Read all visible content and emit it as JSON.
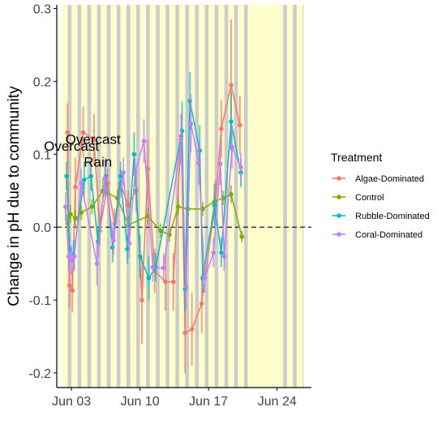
{
  "chart_data": {
    "type": "line",
    "title": "",
    "xlabel": "",
    "ylabel": "Change in pH due to community",
    "x_axis": {
      "ticks": [
        {
          "label": "Jun 03",
          "day": 3
        },
        {
          "label": "Jun 10",
          "day": 10
        },
        {
          "label": "Jun 17",
          "day": 17
        },
        {
          "label": "Jun 24",
          "day": 24
        }
      ],
      "range_days": [
        1.5,
        27.5
      ]
    },
    "y_axis": {
      "ylim": [
        -0.22,
        0.305
      ],
      "ticks": [
        {
          "label": "0.3",
          "value": 0.3
        },
        {
          "label": "0.2",
          "value": 0.2
        },
        {
          "label": "0.1",
          "value": 0.1
        },
        {
          "label": "0.0",
          "value": 0.0
        },
        {
          "label": "-0.1",
          "value": -0.1
        },
        {
          "label": "-0.2",
          "value": -0.2
        }
      ]
    },
    "reference_line": {
      "y": 0,
      "style": "dashed"
    },
    "background": {
      "day_band_color": "#ffffcc",
      "night_band_color": "#cccccc",
      "band_start_day": 2.0,
      "band_end_day": 20.9,
      "tail_band_end_day": 26.7
    },
    "grid": false,
    "legend": {
      "title": "Treatment",
      "position": "right",
      "entries": [
        {
          "label": "Algae-Dominated",
          "color": "#f8766d"
        },
        {
          "label": "Control",
          "color": "#7cae00"
        },
        {
          "label": "Rubble-Dominated",
          "color": "#00bfc4"
        },
        {
          "label": "Coral-Dominated",
          "color": "#c77cff"
        }
      ]
    },
    "annotations": [
      {
        "text": "Overcast",
        "day": 3.0,
        "value": 0.105
      },
      {
        "text": "Overcast",
        "day": 5.2,
        "value": 0.114
      },
      {
        "text": "Rain",
        "day": 5.7,
        "value": 0.083
      }
    ],
    "series": [
      {
        "name": "Algae-Dominated",
        "color": "#f8766d",
        "points": [
          {
            "day": 2.6,
            "y": 0.13,
            "err": 0.04
          },
          {
            "day": 2.8,
            "y": -0.08,
            "err": 0.03
          },
          {
            "day": 3.1,
            "y": -0.087,
            "err": 0.03
          },
          {
            "day": 3.4,
            "y": 0.055,
            "err": 0.04
          },
          {
            "day": 4.2,
            "y": 0.13,
            "err": 0.035
          },
          {
            "day": 5.3,
            "y": 0.12,
            "err": 0.035
          },
          {
            "day": 5.9,
            "y": -0.005,
            "err": 0.02
          },
          {
            "day": 6.7,
            "y": 0.06,
            "err": 0.02
          },
          {
            "day": 7.4,
            "y": 0.005,
            "err": 0.02
          },
          {
            "day": 8.0,
            "y": 0.06,
            "err": 0.02
          },
          {
            "day": 8.8,
            "y": 0.03,
            "err": 0.02
          },
          {
            "day": 9.6,
            "y": 0.05,
            "err": 0.03
          },
          {
            "day": 10.2,
            "y": -0.1,
            "err": 0.06
          },
          {
            "day": 10.8,
            "y": 0.08,
            "err": 0.04
          },
          {
            "day": 11.5,
            "y": -0.06,
            "err": 0.03
          },
          {
            "day": 12.6,
            "y": -0.075,
            "err": 0.04
          },
          {
            "day": 13.4,
            "y": -0.075,
            "err": 0.04
          },
          {
            "day": 14.2,
            "y": 0.125,
            "err": 0.03
          },
          {
            "day": 14.6,
            "y": -0.145,
            "err": 0.055
          },
          {
            "day": 15.3,
            "y": -0.14,
            "err": 0.05
          },
          {
            "day": 16.3,
            "y": -0.105,
            "err": 0.04
          },
          {
            "day": 17.7,
            "y": 0.035,
            "err": 0.03
          },
          {
            "day": 18.3,
            "y": 0.135,
            "err": 0.04
          },
          {
            "day": 19.3,
            "y": 0.195,
            "err": 0.09
          },
          {
            "day": 20.2,
            "y": 0.14,
            "err": 0.04
          }
        ]
      },
      {
        "name": "Control",
        "color": "#7cae00",
        "points": [
          {
            "day": 2.6,
            "y": 0.005,
            "err": 0.012
          },
          {
            "day": 2.9,
            "y": 0.018,
            "err": 0.012
          },
          {
            "day": 3.4,
            "y": 0.012,
            "err": 0.012
          },
          {
            "day": 4.0,
            "y": 0.02,
            "err": 0.01
          },
          {
            "day": 5.1,
            "y": 0.028,
            "err": 0.01
          },
          {
            "day": 6.2,
            "y": 0.05,
            "err": 0.015
          },
          {
            "day": 7.7,
            "y": 0.04,
            "err": 0.012
          },
          {
            "day": 8.8,
            "y": 0.003,
            "err": 0.012
          },
          {
            "day": 10.8,
            "y": 0.015,
            "err": 0.012
          },
          {
            "day": 12.1,
            "y": -0.005,
            "err": 0.01
          },
          {
            "day": 13.0,
            "y": -0.01,
            "err": 0.01
          },
          {
            "day": 13.9,
            "y": 0.028,
            "err": 0.012
          },
          {
            "day": 14.9,
            "y": 0.025,
            "err": 0.012
          },
          {
            "day": 16.4,
            "y": 0.025,
            "err": 0.01
          },
          {
            "day": 17.6,
            "y": 0.035,
            "err": 0.012
          },
          {
            "day": 18.5,
            "y": 0.04,
            "err": 0.01
          },
          {
            "day": 19.3,
            "y": 0.045,
            "err": 0.012
          },
          {
            "day": 20.4,
            "y": -0.013,
            "err": 0.008
          }
        ]
      },
      {
        "name": "Rubble-Dominated",
        "color": "#00bfc4",
        "points": [
          {
            "day": 2.5,
            "y": 0.07,
            "err": 0.02
          },
          {
            "day": 2.8,
            "y": -0.03,
            "err": 0.02
          },
          {
            "day": 3.2,
            "y": -0.038,
            "err": 0.02
          },
          {
            "day": 4.3,
            "y": 0.065,
            "err": 0.025
          },
          {
            "day": 5.0,
            "y": 0.07,
            "err": 0.02
          },
          {
            "day": 5.7,
            "y": -0.02,
            "err": 0.02
          },
          {
            "day": 6.5,
            "y": 0.07,
            "err": 0.025
          },
          {
            "day": 7.2,
            "y": -0.028,
            "err": 0.02
          },
          {
            "day": 8.0,
            "y": 0.07,
            "err": 0.02
          },
          {
            "day": 8.7,
            "y": -0.03,
            "err": 0.02
          },
          {
            "day": 9.4,
            "y": 0.1,
            "err": 0.03
          },
          {
            "day": 10.0,
            "y": -0.04,
            "err": 0.03
          },
          {
            "day": 10.9,
            "y": -0.07,
            "err": 0.03
          },
          {
            "day": 11.6,
            "y": -0.055,
            "err": 0.02
          },
          {
            "day": 14.3,
            "y": 0.132,
            "err": 0.04
          },
          {
            "day": 14.6,
            "y": -0.085,
            "err": 0.03
          },
          {
            "day": 15.1,
            "y": 0.173,
            "err": 0.04
          },
          {
            "day": 16.1,
            "y": 0.105,
            "err": 0.035
          },
          {
            "day": 16.4,
            "y": -0.07,
            "err": 0.02
          },
          {
            "day": 17.6,
            "y": 0.03,
            "err": 0.03
          },
          {
            "day": 18.3,
            "y": -0.035,
            "err": 0.02
          },
          {
            "day": 19.3,
            "y": 0.145,
            "err": 0.04
          },
          {
            "day": 20.3,
            "y": 0.075,
            "err": 0.02
          }
        ]
      },
      {
        "name": "Coral-Dominated",
        "color": "#c77cff",
        "points": [
          {
            "day": 2.4,
            "y": 0.028,
            "err": 0.02
          },
          {
            "day": 2.7,
            "y": -0.04,
            "err": 0.02
          },
          {
            "day": 3.0,
            "y": -0.045,
            "err": 0.02
          },
          {
            "day": 3.3,
            "y": -0.04,
            "err": 0.02
          },
          {
            "day": 4.0,
            "y": 0.06,
            "err": 0.02
          },
          {
            "day": 5.6,
            "y": -0.05,
            "err": 0.03
          },
          {
            "day": 6.4,
            "y": 0.067,
            "err": 0.025
          },
          {
            "day": 7.3,
            "y": -0.018,
            "err": 0.02
          },
          {
            "day": 8.3,
            "y": 0.075,
            "err": 0.02
          },
          {
            "day": 8.9,
            "y": -0.022,
            "err": 0.02
          },
          {
            "day": 9.5,
            "y": 0.075,
            "err": 0.02
          },
          {
            "day": 10.4,
            "y": 0.118,
            "err": 0.03
          },
          {
            "day": 11.3,
            "y": -0.055,
            "err": 0.02
          },
          {
            "day": 12.4,
            "y": -0.056,
            "err": 0.02
          },
          {
            "day": 14.2,
            "y": 0.12,
            "err": 0.035
          },
          {
            "day": 14.7,
            "y": -0.082,
            "err": 0.03
          },
          {
            "day": 15.2,
            "y": 0.142,
            "err": 0.04
          },
          {
            "day": 16.0,
            "y": 0.088,
            "err": 0.03
          },
          {
            "day": 16.6,
            "y": -0.07,
            "err": 0.02
          },
          {
            "day": 17.5,
            "y": -0.035,
            "err": 0.02
          },
          {
            "day": 18.2,
            "y": 0.087,
            "err": 0.03
          },
          {
            "day": 18.6,
            "y": -0.04,
            "err": 0.02
          },
          {
            "day": 19.4,
            "y": 0.11,
            "err": 0.03
          },
          {
            "day": 20.3,
            "y": 0.082,
            "err": 0.02
          }
        ]
      }
    ]
  }
}
